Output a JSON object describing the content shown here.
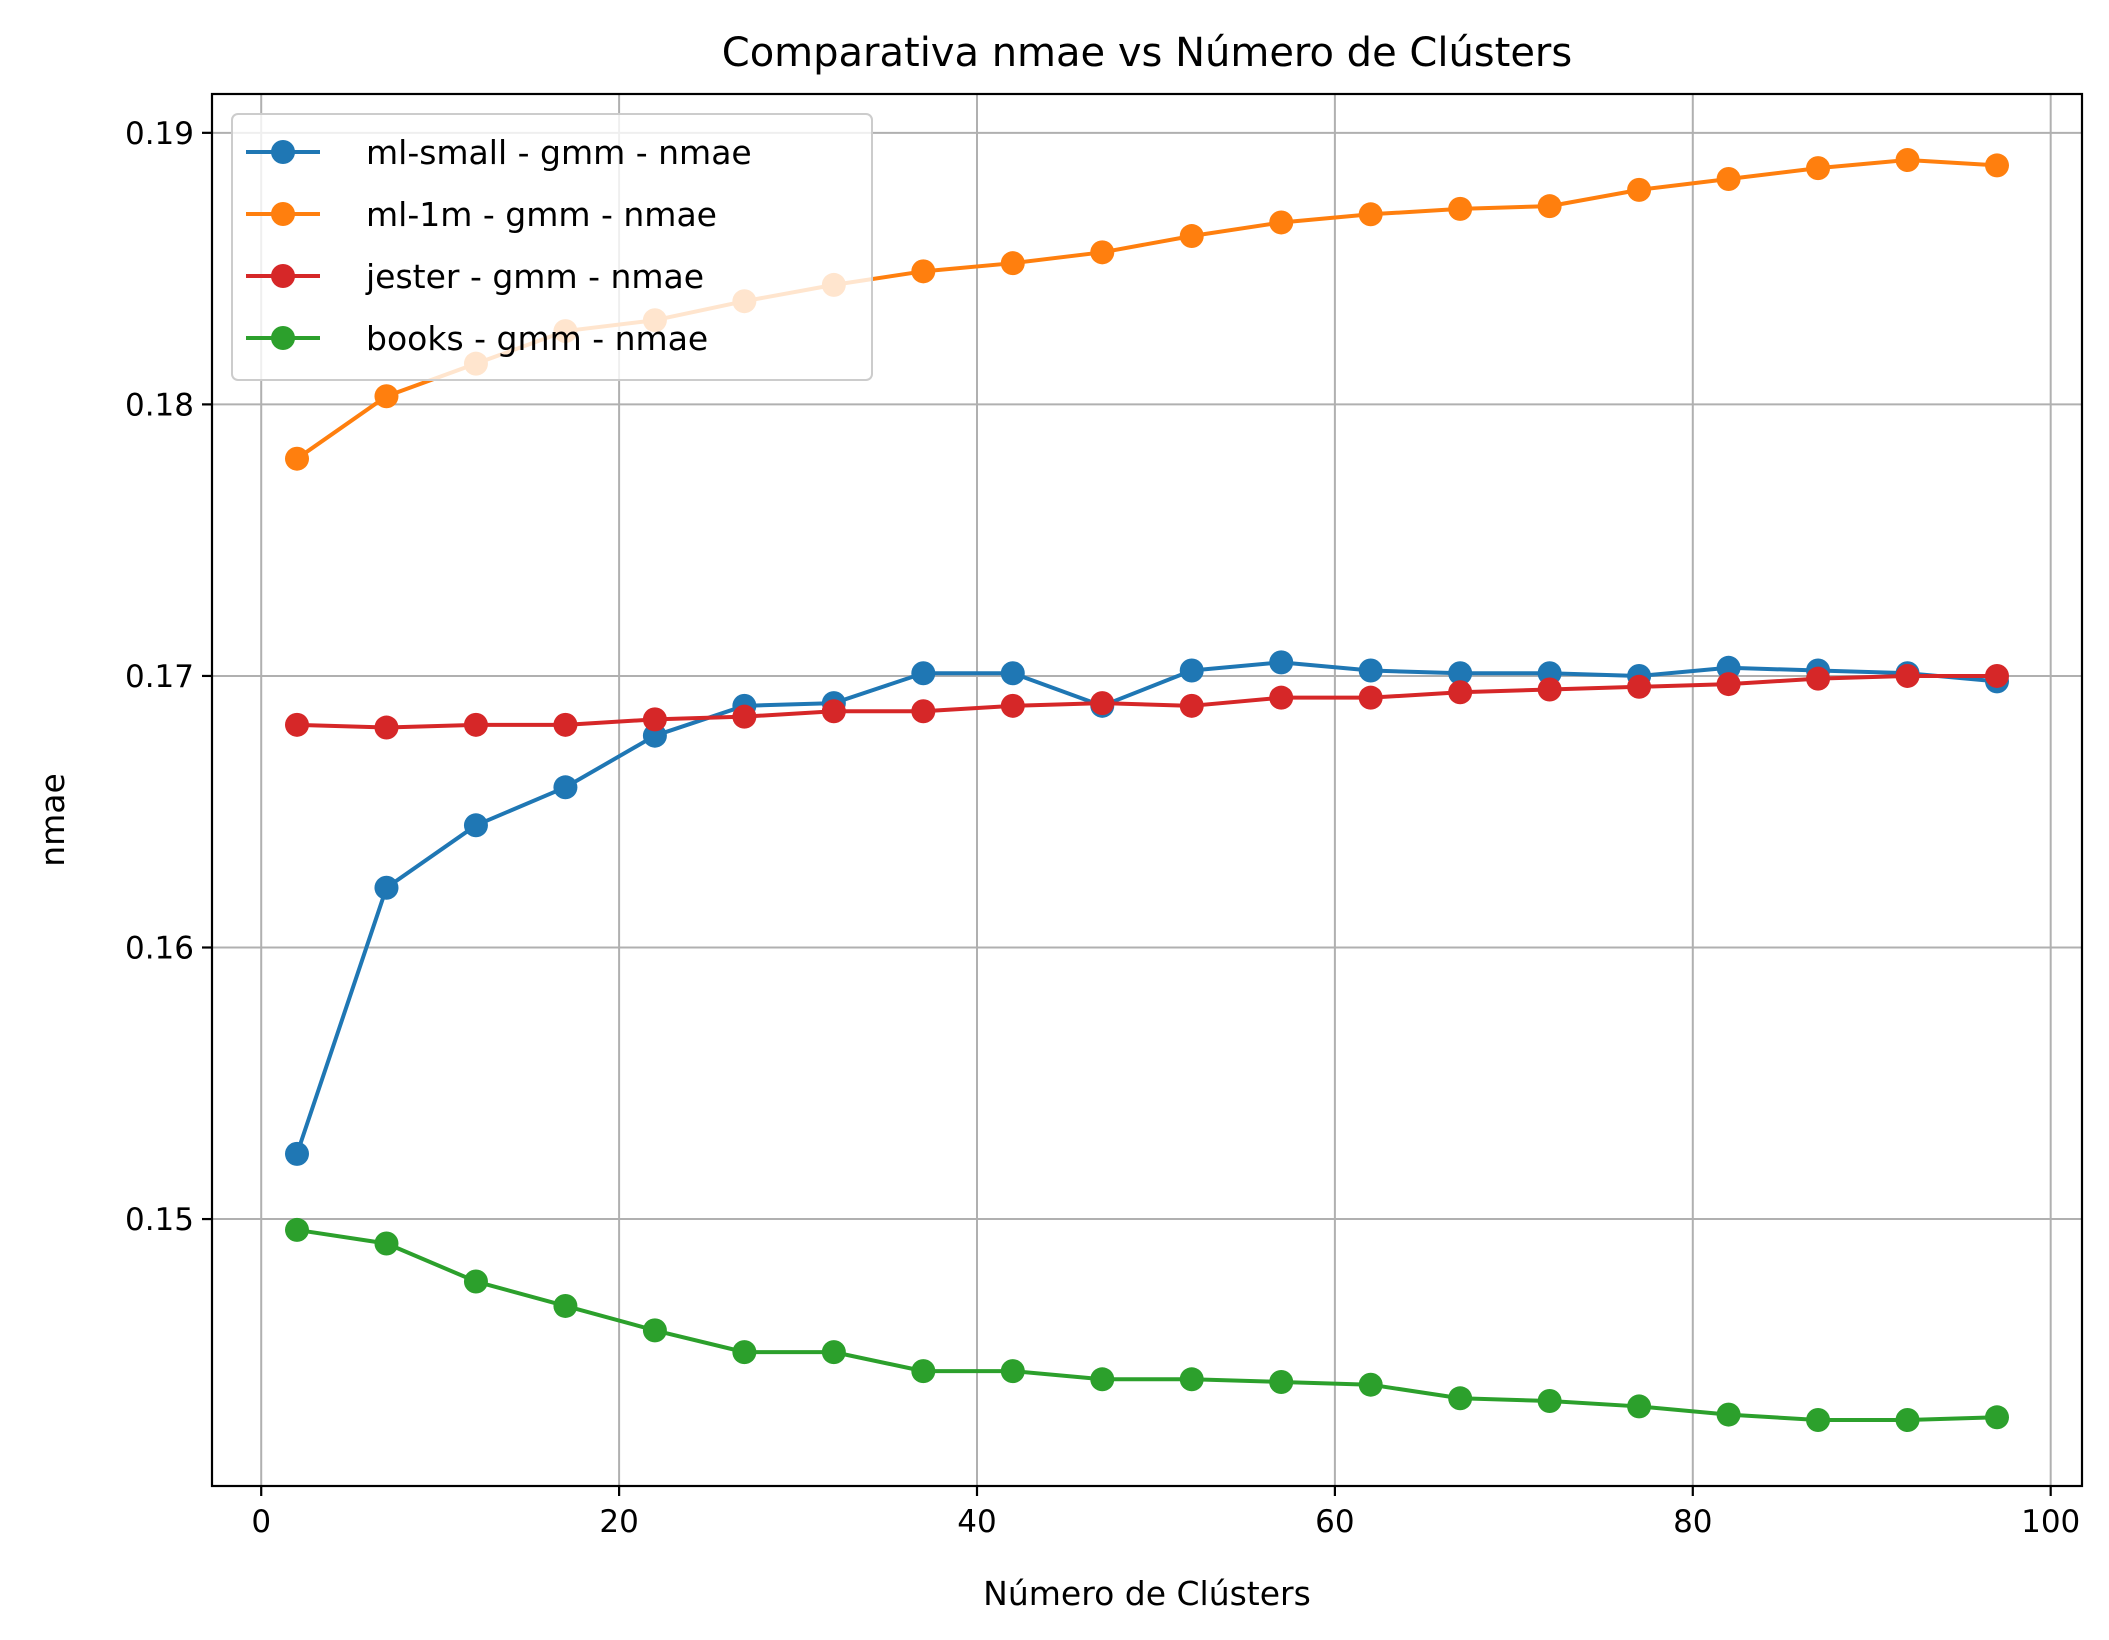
{
  "chart_data": {
    "type": "line",
    "title": "Comparativa nmae vs Número de Clústers",
    "xlabel": "Número de Clústers",
    "ylabel": "nmae",
    "xlim": [
      -2.75,
      101.75
    ],
    "ylim": [
      0.14017,
      0.19143
    ],
    "xticks": [
      0,
      20,
      40,
      60,
      80,
      100
    ],
    "xtick_labels": [
      "0",
      "20",
      "40",
      "60",
      "80",
      "100"
    ],
    "yticks": [
      0.15,
      0.16,
      0.17,
      0.18,
      0.19
    ],
    "ytick_labels": [
      "0.15",
      "0.16",
      "0.17",
      "0.18",
      "0.19"
    ],
    "grid": true,
    "legend_position": "top-left",
    "x": [
      2,
      7,
      12,
      17,
      22,
      27,
      32,
      37,
      42,
      47,
      52,
      57,
      62,
      67,
      72,
      77,
      82,
      87,
      92,
      97
    ],
    "series": [
      {
        "name": "ml-small - gmm - nmae",
        "color": "#1f77b4",
        "values": [
          0.1524,
          0.1622,
          0.1645,
          0.1659,
          0.1678,
          0.1689,
          0.169,
          0.1701,
          0.1701,
          0.1689,
          0.1702,
          0.1705,
          0.1702,
          0.1701,
          0.1701,
          0.17,
          0.1703,
          0.1702,
          0.1701,
          0.1698
        ]
      },
      {
        "name": "ml-1m - gmm - nmae",
        "color": "#ff7f0e",
        "values": [
          0.178,
          0.1803,
          0.1815,
          0.1827,
          0.1831,
          0.1838,
          0.1844,
          0.1849,
          0.1852,
          0.1856,
          0.1862,
          0.1867,
          0.187,
          0.1872,
          0.1873,
          0.1879,
          0.1883,
          0.1887,
          0.189,
          0.1888
        ]
      },
      {
        "name": "jester - gmm - nmae",
        "color": "#d62728",
        "values": [
          0.1682,
          0.1681,
          0.1682,
          0.1682,
          0.1684,
          0.1685,
          0.1687,
          0.1687,
          0.1689,
          0.169,
          0.1689,
          0.1692,
          0.1692,
          0.1694,
          0.1695,
          0.1696,
          0.1697,
          0.1699,
          0.17,
          0.17
        ]
      },
      {
        "name": "books - gmm - nmae",
        "color": "#2ca02c",
        "values": [
          0.1496,
          0.1491,
          0.1477,
          0.1468,
          0.1459,
          0.1451,
          0.1451,
          0.1444,
          0.1444,
          0.1441,
          0.1441,
          0.144,
          0.1439,
          0.1434,
          0.1433,
          0.1431,
          0.1428,
          0.1426,
          0.1426,
          0.1427
        ]
      }
    ]
  }
}
